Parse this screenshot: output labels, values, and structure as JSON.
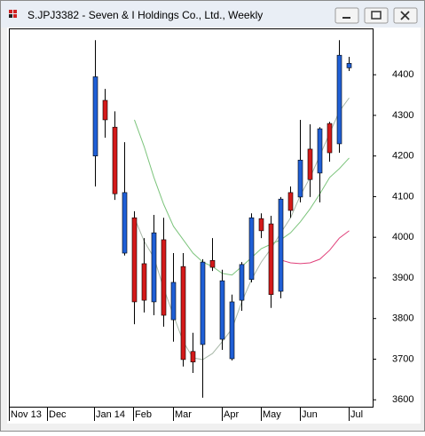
{
  "window": {
    "title": "S.JPJ3382 - Seven & I Holdings Co., Ltd., Weekly"
  },
  "chart_data": {
    "type": "candlestick",
    "categories": [
      null,
      null,
      null,
      null,
      null,
      null,
      null,
      null,
      null,
      null,
      null,
      null,
      null,
      null,
      null,
      null,
      null,
      null,
      null,
      null,
      null,
      null,
      null,
      null,
      null,
      null,
      null
    ],
    "open": [
      4200,
      4337,
      4271,
      3961,
      4048,
      3935,
      3841,
      3994,
      3797,
      3928,
      3719,
      3736,
      3943,
      3749,
      3701,
      3845,
      3896,
      4046,
      4033,
      3867,
      4110,
      4099,
      4217,
      4158,
      4280,
      4230,
      4417
    ],
    "high": [
      4485,
      4365,
      4310,
      4234,
      4064,
      3998,
      4055,
      4048,
      3961,
      3961,
      3765,
      3946,
      3998,
      3920,
      3859,
      3939,
      4059,
      4059,
      4053,
      4099,
      4125,
      4289,
      4278,
      4271,
      4284,
      4485,
      4444
    ],
    "low": [
      4125,
      4245,
      4092,
      3955,
      3786,
      3815,
      3808,
      3780,
      3743,
      3682,
      3666,
      3605,
      3917,
      3723,
      3697,
      3819,
      3889,
      3998,
      3826,
      3850,
      4048,
      4086,
      4099,
      4086,
      4186,
      4208,
      4409
    ],
    "close": [
      4395,
      4289,
      4107,
      4110,
      3841,
      3845,
      4011,
      3808,
      3889,
      3699,
      3693,
      3939,
      3926,
      3893,
      3841,
      3933,
      4048,
      4016,
      3859,
      4094,
      4066,
      4190,
      4142,
      4267,
      4208,
      4448,
      4428
    ],
    "up_color": "#1f5fd6",
    "down_color": "#d41a1a",
    "series": [
      {
        "color": "#a8b8a8",
        "values": [
          null,
          null,
          null,
          null,
          4048,
          3990,
          3950,
          3874,
          3808,
          3743,
          3703,
          3699,
          3714,
          3743,
          3775,
          3841,
          3896,
          3939,
          3972,
          4011,
          4048,
          4103,
          4147,
          4201,
          4256,
          4310,
          4343
        ]
      },
      {
        "color": "#7cc47c",
        "values": [
          null,
          null,
          null,
          null,
          4289,
          4223,
          4147,
          4081,
          4027,
          3994,
          3961,
          3939,
          3928,
          3911,
          3907,
          3928,
          3950,
          3972,
          3983,
          3994,
          4011,
          4038,
          4070,
          4107,
          4147,
          4169,
          4195
        ]
      },
      {
        "color": "#e0407a",
        "values": [
          null,
          null,
          null,
          null,
          null,
          null,
          null,
          null,
          null,
          null,
          null,
          null,
          null,
          null,
          null,
          null,
          null,
          null,
          null,
          3944,
          3937,
          3935,
          3937,
          3946,
          3968,
          3998,
          4016
        ]
      }
    ],
    "ylim": [
      3583,
      4514
    ],
    "yticks": [
      3600,
      3700,
      3800,
      3900,
      4000,
      4100,
      4200,
      4300,
      4400
    ],
    "xtick_labels": [
      "Nov 13",
      "Dec",
      "Jan 14",
      "Feb",
      "Mar",
      "Apr",
      "May",
      "Jun",
      "Jul"
    ]
  }
}
